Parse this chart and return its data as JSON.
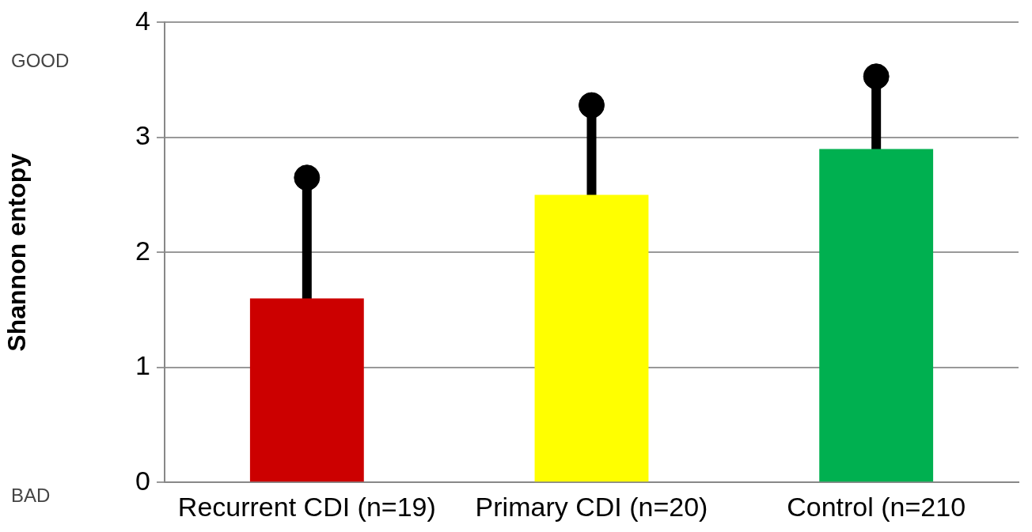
{
  "chart_data": {
    "type": "bar",
    "ylabel": "Shannon entopy",
    "categories": [
      "Recurrent CDI (n=19)",
      "Primary CDI (n=20)",
      "Control (n=210"
    ],
    "series": [
      {
        "type": "bar",
        "values": [
          1.6,
          2.5,
          2.9
        ],
        "colors": [
          "#cc0000",
          "#ffff00",
          "#00b050"
        ],
        "errors": [
          1.05,
          0.78,
          0.63
        ]
      },
      {
        "type": "scatter",
        "x": [
          "Recurrent CDI (n=19)",
          "Primary CDI (n=20)",
          "Control (n=210"
        ],
        "values": [
          2.65,
          3.28,
          3.53
        ],
        "color": "#000000",
        "marker": "circle"
      }
    ],
    "ylim": [
      0,
      4
    ],
    "yticks": [
      0,
      1,
      2,
      3,
      4
    ],
    "grid": "y",
    "annotations": [
      "GOOD",
      "BAD"
    ]
  }
}
